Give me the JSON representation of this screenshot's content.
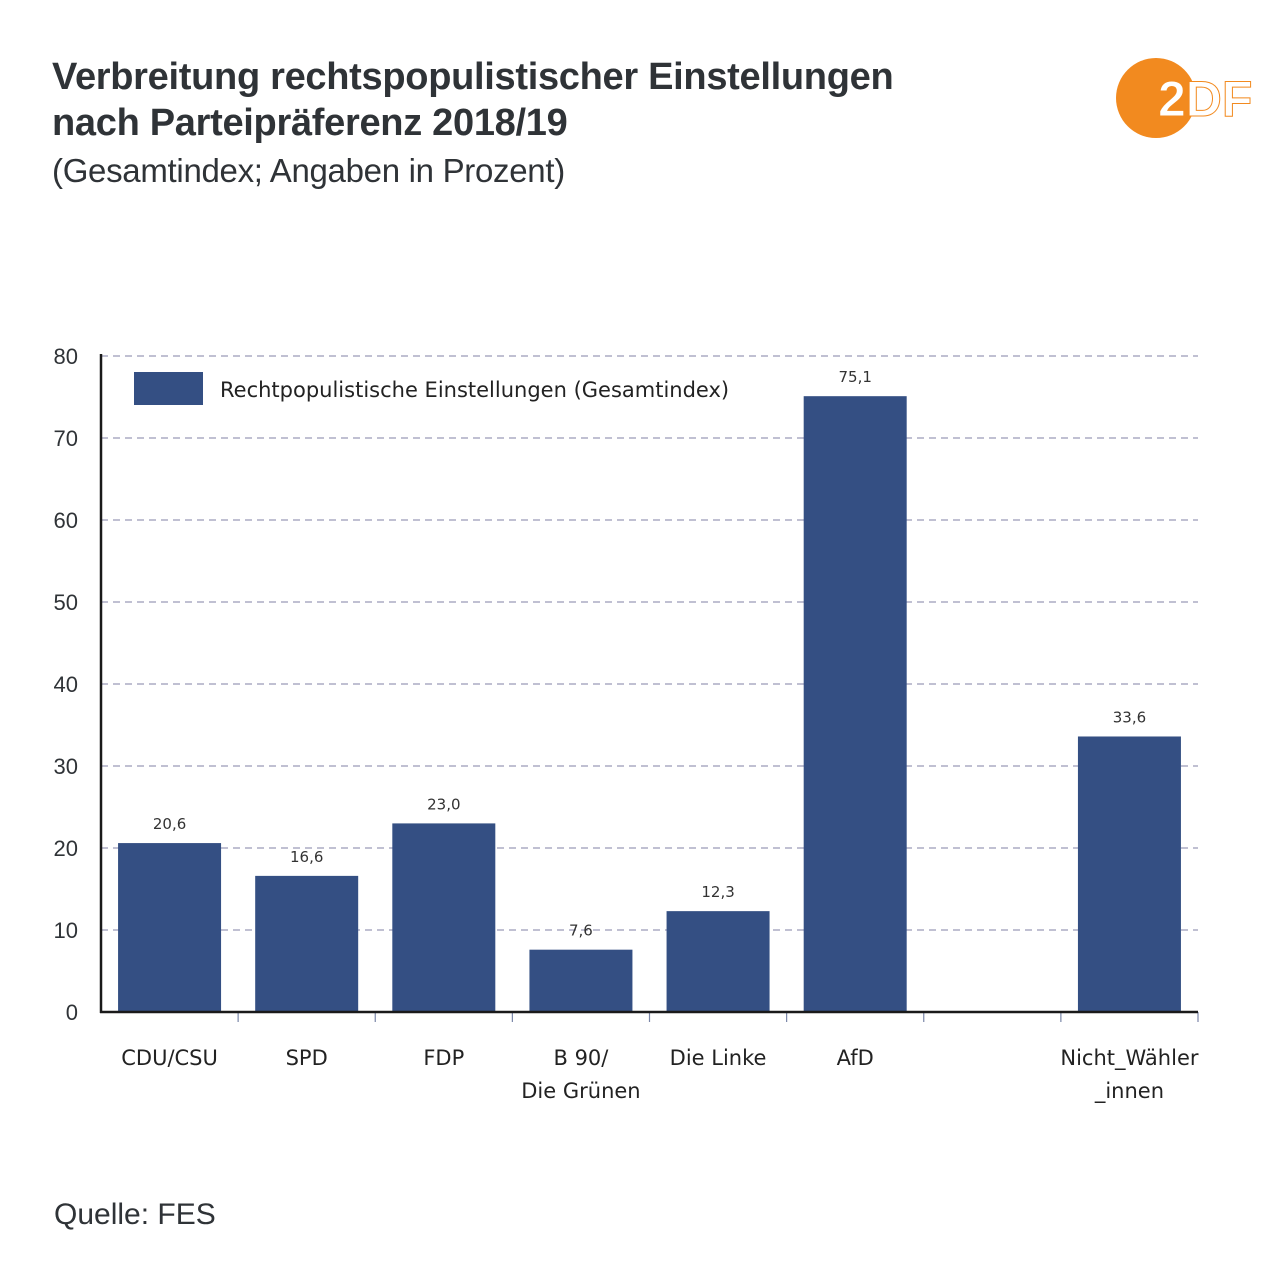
{
  "header": {
    "title_line1": "Verbreitung rechtspopulistischer Einstellungen",
    "title_line2": "nach Parteipräferenz 2018/19",
    "subtitle": "(Gesamtindex; Angaben in Prozent)"
  },
  "logo": {
    "text": "2DF",
    "brand": "ZDF",
    "color": "#f28a1f"
  },
  "footer": {
    "source": "Quelle: FES"
  },
  "colors": {
    "bar": "#344f83",
    "grid": "#9a9ab8",
    "axis": "#1a1a1a",
    "text": "#2f3337"
  },
  "chart_data": {
    "type": "bar",
    "title": "Verbreitung rechtspopulistischer Einstellungen nach Parteipräferenz 2018/19",
    "subtitle": "(Gesamtindex; Angaben in Prozent)",
    "xlabel": "",
    "ylabel": "",
    "ylim": [
      0,
      80
    ],
    "yticks": [
      0,
      10,
      20,
      30,
      40,
      50,
      60,
      70,
      80
    ],
    "grid": true,
    "legend": {
      "position": "top-left",
      "entries": [
        "Rechtpopulistische Einstellungen (Gesamtindex)"
      ]
    },
    "categories": [
      [
        "CDU/CSU"
      ],
      [
        "SPD"
      ],
      [
        "FDP"
      ],
      [
        "B 90/",
        "Die Grünen"
      ],
      [
        "Die Linke"
      ],
      [
        "AfD"
      ],
      [],
      [
        "Nicht_Wähler",
        "_innen"
      ]
    ],
    "series": [
      {
        "name": "Rechtpopulistische Einstellungen (Gesamtindex)",
        "values": [
          20.6,
          16.6,
          23.0,
          7.6,
          12.3,
          75.1,
          null,
          33.6
        ],
        "labels": [
          "20,6",
          "16,6",
          "23,0",
          "7,6",
          "12,3",
          "75,1",
          null,
          "33,6"
        ]
      }
    ]
  }
}
